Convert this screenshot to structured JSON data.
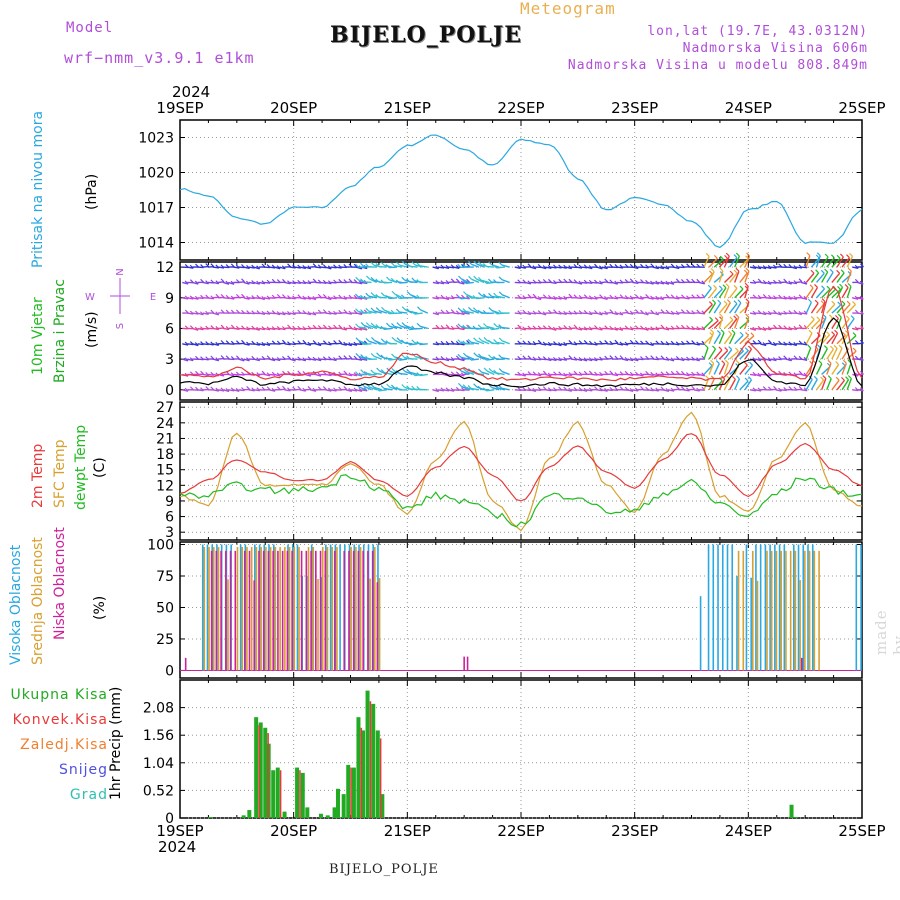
{
  "header": {
    "model_label": "Model",
    "model_name": "wrf−nmm_v3.9.1  e1km",
    "title": "Meteogram",
    "station": "BIJELO_POLJE",
    "lonlat": "lon,lat (19.7E, 43.0312N)",
    "altitude": "Nadmorska Visina 606m",
    "model_altitude": "Nadmorska Visina u modelu 808.849m",
    "year_top": "2024",
    "year_bottom": "2024",
    "footer_station": "BIJELO_POLJE",
    "credit": "made by Angel"
  },
  "dates": [
    "19SEP",
    "20SEP",
    "21SEP",
    "22SEP",
    "23SEP",
    "24SEP",
    "25SEP"
  ],
  "colors": {
    "pressure": "#2aa8e0",
    "wind_label": "#22bb22",
    "wind_label2": "#22aa22",
    "temp2m": "#e83a3a",
    "sfc": "#d8a030",
    "dewpt": "#22bb22",
    "cloud_high": "#2aa8e0",
    "cloud_mid": "#d8a030",
    "cloud_low": "#cc2299",
    "precip_total": "#22aa22",
    "precip_conv": "#e83a3a",
    "precip_frz": "#f08030",
    "snow": "#5050e0",
    "hail": "#30c0b0",
    "compass": "#b04ed8"
  },
  "panel_labels": {
    "pressure": [
      "Pritisak na nivou mora",
      "(hPa)"
    ],
    "wind": [
      "10m Vjetar",
      "Brzina i Pravac",
      "(m/s)"
    ],
    "wind_compass": [
      "N",
      "S",
      "W",
      "E"
    ],
    "temp": [
      "2m Temp",
      "SFC Temp",
      "dewpt Temp",
      "(C)"
    ],
    "cloud": [
      "Visoka Oblacnost",
      "Srednja Oblacnost",
      "Niska Oblacnost",
      "(%)"
    ],
    "precip_y": [
      "1hr Precip (mm)"
    ],
    "precip_legend": [
      "Ukupna Kisa",
      "Konvek.Kisa",
      "Zaledj.Kisa",
      "Snijeg",
      "Grad"
    ]
  },
  "chart_data": [
    {
      "type": "line",
      "name": "pressure",
      "ylabel": "Pritisak na nivou mora (hPa)",
      "yticks": [
        1014,
        1017,
        1020,
        1023
      ],
      "ylim": [
        1012.5,
        1024.5
      ],
      "grid": true,
      "x": [
        0,
        0.25,
        0.5,
        0.75,
        1.0,
        1.25,
        1.5,
        1.75,
        2.0,
        2.25,
        2.5,
        2.75,
        3.0,
        3.25,
        3.5,
        3.75,
        4.0,
        4.25,
        4.5,
        4.75,
        5.0,
        5.25,
        5.5,
        5.75,
        6.0
      ],
      "series": [
        {
          "values": [
            1018.6,
            1018.0,
            1016.1,
            1015.6,
            1017.0,
            1017.0,
            1018.8,
            1020.5,
            1022.3,
            1023.2,
            1022.0,
            1020.6,
            1022.8,
            1022.4,
            1019.5,
            1016.8,
            1017.8,
            1017.3,
            1015.8,
            1013.6,
            1016.8,
            1017.5,
            1014.0,
            1014.0,
            1016.8
          ]
        }
      ]
    },
    {
      "type": "line",
      "name": "wind",
      "ylabel": "10m Vjetar Brzina i Pravac (m/s)",
      "yticks": [
        0,
        3,
        6,
        9,
        12
      ],
      "ylim": [
        -1,
        12.5
      ],
      "grid": true,
      "x": [
        0,
        0.25,
        0.5,
        0.75,
        1.0,
        1.25,
        1.5,
        1.75,
        2.0,
        2.25,
        2.5,
        2.75,
        3.0,
        3.25,
        3.5,
        3.75,
        4.0,
        4.25,
        4.5,
        4.75,
        5.0,
        5.25,
        5.5,
        5.75,
        6.0
      ],
      "series": [
        {
          "values": [
            0.8,
            0.6,
            1.2,
            0.5,
            0.8,
            1.0,
            0.5,
            0.6,
            2.3,
            1.6,
            1.2,
            0.5,
            0.4,
            0.6,
            0.5,
            0.4,
            0.5,
            0.6,
            0.5,
            0.4,
            3.0,
            0.8,
            0.5,
            7.0,
            0.5
          ]
        }
      ]
    },
    {
      "type": "line",
      "name": "temperature",
      "ylabel": "Temp (C)",
      "yticks": [
        3,
        6,
        9,
        12,
        15,
        18,
        21,
        24,
        27
      ],
      "ylim": [
        1.5,
        28
      ],
      "grid": true,
      "x": [
        0,
        0.25,
        0.5,
        0.75,
        1.0,
        1.25,
        1.5,
        1.75,
        2.0,
        2.25,
        2.5,
        2.75,
        3.0,
        3.25,
        3.5,
        3.75,
        4.0,
        4.25,
        4.5,
        4.75,
        5.0,
        5.25,
        5.5,
        5.75,
        6.0
      ],
      "series": [
        {
          "name": "2m Temp",
          "values": [
            10.5,
            13.0,
            17.0,
            14.5,
            13.0,
            13.0,
            16.5,
            13.0,
            10.0,
            15.5,
            19.5,
            14.0,
            9.0,
            15.5,
            19.5,
            14.5,
            11.5,
            17.0,
            22.0,
            14.0,
            10.0,
            16.0,
            20.0,
            15.0,
            12.0
          ]
        },
        {
          "name": "SFC Temp",
          "values": [
            10.0,
            8.0,
            22.0,
            12.0,
            12.0,
            12.0,
            16.0,
            12.0,
            6.5,
            17.0,
            24.0,
            9.0,
            3.5,
            17.0,
            24.0,
            12.0,
            7.0,
            18.0,
            26.0,
            10.0,
            7.0,
            17.0,
            24.0,
            11.0,
            8.0
          ]
        },
        {
          "name": "dewpt Temp",
          "values": [
            10.0,
            10.0,
            12.0,
            11.0,
            11.0,
            11.5,
            14.0,
            11.5,
            7.5,
            10.0,
            9.0,
            6.5,
            4.5,
            10.0,
            10.0,
            7.0,
            7.0,
            10.5,
            12.5,
            8.5,
            6.0,
            10.5,
            13.5,
            11.0,
            10.0
          ]
        }
      ]
    },
    {
      "type": "bar",
      "name": "cloudiness",
      "ylabel": "Oblacnost (%)",
      "yticks": [
        0,
        25,
        50,
        75,
        100
      ],
      "ylim": [
        -6,
        102
      ],
      "grid": true,
      "series": [
        {
          "name": "Visoka Oblacnost",
          "segments": [
            [
              0.2,
              1.75,
              100
            ],
            [
              4.65,
              5.65,
              100
            ],
            [
              5.95,
              6.0,
              100
            ]
          ],
          "isolated": [
            [
              4.58,
              59
            ]
          ]
        },
        {
          "name": "Srednja Oblacnost",
          "segments": [
            [
              0.2,
              1.75,
              98
            ],
            [
              4.9,
              5.65,
              95
            ]
          ]
        },
        {
          "name": "Niska Oblacnost",
          "segments": [
            [
              0.25,
              1.72,
              95
            ]
          ],
          "isolated": [
            [
              0.05,
              10
            ],
            [
              2.5,
              11
            ],
            [
              2.53,
              11
            ],
            [
              5.47,
              10
            ]
          ]
        }
      ]
    },
    {
      "type": "bar",
      "name": "precipitation",
      "ylabel": "1hr Precip (mm)",
      "yticks": [
        0,
        0.52,
        1.04,
        1.56,
        2.08
      ],
      "ylim": [
        0,
        2.6
      ],
      "grid": true,
      "series": [
        {
          "name": "Ukupna Kisa",
          "bars": [
            [
              0.27,
              0.02
            ],
            [
              0.56,
              0.05
            ],
            [
              0.61,
              0.15
            ],
            [
              0.67,
              1.9
            ],
            [
              0.71,
              1.8
            ],
            [
              0.75,
              1.7
            ],
            [
              0.78,
              1.4
            ],
            [
              0.82,
              0.9
            ],
            [
              0.86,
              0.95
            ],
            [
              0.92,
              0.12
            ],
            [
              1.03,
              0.95
            ],
            [
              1.08,
              0.85
            ],
            [
              1.12,
              0.2
            ],
            [
              1.24,
              0.08
            ],
            [
              1.3,
              0.05
            ],
            [
              1.36,
              0.2
            ],
            [
              1.39,
              0.55
            ],
            [
              1.44,
              0.45
            ],
            [
              1.48,
              1.0
            ],
            [
              1.53,
              0.95
            ],
            [
              1.57,
              1.9
            ],
            [
              1.61,
              1.65
            ],
            [
              1.65,
              2.4
            ],
            [
              1.7,
              2.15
            ],
            [
              1.74,
              1.65
            ],
            [
              1.78,
              0.45
            ],
            [
              5.38,
              0.25
            ],
            [
              5.42,
              0.02
            ]
          ]
        },
        {
          "name": "Konvek.Kisa",
          "bars": [
            [
              0.68,
              1.75
            ],
            [
              0.76,
              1.6
            ],
            [
              0.87,
              0.9
            ],
            [
              1.04,
              0.9
            ],
            [
              1.49,
              0.95
            ],
            [
              1.58,
              1.7
            ],
            [
              1.66,
              2.2
            ],
            [
              1.75,
              1.5
            ]
          ]
        }
      ]
    }
  ]
}
